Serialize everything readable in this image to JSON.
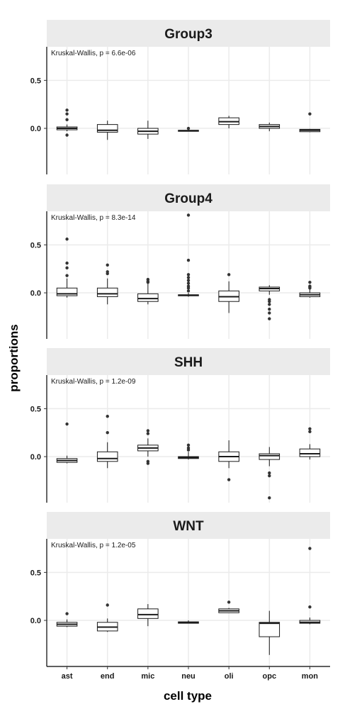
{
  "chart_data": {
    "type": "boxplot",
    "xlabel": "cell type",
    "ylabel": "proportions",
    "categories": [
      "ast",
      "end",
      "mic",
      "neu",
      "oli",
      "opc",
      "mon"
    ],
    "ylim": [
      -0.48,
      0.85
    ],
    "yticks": [
      0.0,
      0.5
    ],
    "ytick_labels": [
      "0.0",
      "0.5"
    ],
    "grid": true,
    "legend": "none",
    "colors": {
      "strip": "#ebebeb",
      "grid": "#ebebeb",
      "box_fill": "#ffffff",
      "ink": "#1a1a1a",
      "point": "#333333"
    },
    "panels": [
      {
        "title": "Group3",
        "annotation": "Kruskal-Wallis, p = 6.6e-06",
        "boxes": [
          {
            "cat": "ast",
            "lo": -0.03,
            "q1": -0.015,
            "med": 0.0,
            "q3": 0.015,
            "hi": 0.04,
            "out": [
              0.19,
              0.15,
              0.09,
              -0.07
            ]
          },
          {
            "cat": "end",
            "lo": -0.12,
            "q1": -0.04,
            "med": -0.02,
            "q3": 0.04,
            "hi": 0.08,
            "out": []
          },
          {
            "cat": "mic",
            "lo": -0.11,
            "q1": -0.06,
            "med": -0.03,
            "q3": 0.0,
            "hi": 0.08,
            "out": []
          },
          {
            "cat": "neu",
            "lo": -0.03,
            "q1": -0.03,
            "med": -0.025,
            "q3": -0.02,
            "hi": -0.01,
            "out": [
              0.0
            ]
          },
          {
            "cat": "oli",
            "lo": 0.0,
            "q1": 0.04,
            "med": 0.07,
            "q3": 0.11,
            "hi": 0.13,
            "out": []
          },
          {
            "cat": "opc",
            "lo": -0.03,
            "q1": 0.0,
            "med": 0.02,
            "q3": 0.04,
            "hi": 0.06,
            "out": []
          },
          {
            "cat": "mon",
            "lo": -0.04,
            "q1": -0.035,
            "med": -0.02,
            "q3": -0.01,
            "hi": -0.005,
            "out": [
              0.15
            ]
          }
        ]
      },
      {
        "title": "Group4",
        "annotation": "Kruskal-Wallis, p = 8.3e-14",
        "boxes": [
          {
            "cat": "ast",
            "lo": -0.05,
            "q1": -0.03,
            "med": -0.01,
            "q3": 0.05,
            "hi": 0.15,
            "out": [
              0.56,
              0.31,
              0.26,
              0.18
            ]
          },
          {
            "cat": "end",
            "lo": -0.12,
            "q1": -0.04,
            "med": -0.01,
            "q3": 0.05,
            "hi": 0.15,
            "out": [
              0.29,
              0.22,
              0.2
            ]
          },
          {
            "cat": "mic",
            "lo": -0.12,
            "q1": -0.09,
            "med": -0.06,
            "q3": -0.01,
            "hi": 0.1,
            "out": [
              0.14,
              0.12,
              0.11
            ]
          },
          {
            "cat": "neu",
            "lo": -0.04,
            "q1": -0.03,
            "med": -0.025,
            "q3": -0.02,
            "hi": 0.0,
            "out": [
              0.81,
              0.34,
              0.19,
              0.16,
              0.13,
              0.1,
              0.07,
              0.05,
              0.02
            ]
          },
          {
            "cat": "oli",
            "lo": -0.21,
            "q1": -0.09,
            "med": -0.04,
            "q3": 0.02,
            "hi": 0.12,
            "out": [
              0.19
            ]
          },
          {
            "cat": "opc",
            "lo": -0.02,
            "q1": 0.02,
            "med": 0.045,
            "q3": 0.06,
            "hi": 0.08,
            "out": [
              -0.07,
              -0.09,
              -0.12,
              -0.17,
              -0.21,
              -0.27
            ]
          },
          {
            "cat": "mon",
            "lo": -0.05,
            "q1": -0.04,
            "med": -0.02,
            "q3": 0.0,
            "hi": 0.04,
            "out": [
              0.11,
              0.07,
              0.06,
              0.05
            ]
          }
        ]
      },
      {
        "title": "SHH",
        "annotation": "Kruskal-Wallis, p = 1.2e-09",
        "boxes": [
          {
            "cat": "ast",
            "lo": -0.07,
            "q1": -0.06,
            "med": -0.04,
            "q3": -0.02,
            "hi": 0.01,
            "out": [
              0.34
            ]
          },
          {
            "cat": "end",
            "lo": -0.12,
            "q1": -0.05,
            "med": -0.02,
            "q3": 0.05,
            "hi": 0.15,
            "out": [
              0.42,
              0.25
            ]
          },
          {
            "cat": "mic",
            "lo": 0.0,
            "q1": 0.06,
            "med": 0.09,
            "q3": 0.12,
            "hi": 0.19,
            "out": [
              0.27,
              0.24,
              -0.05,
              -0.07
            ]
          },
          {
            "cat": "neu",
            "lo": -0.03,
            "q1": -0.02,
            "med": -0.01,
            "q3": 0.0,
            "hi": 0.05,
            "out": [
              0.12,
              0.09,
              0.07
            ]
          },
          {
            "cat": "oli",
            "lo": -0.12,
            "q1": -0.05,
            "med": 0.0,
            "q3": 0.05,
            "hi": 0.17,
            "out": [
              -0.24
            ]
          },
          {
            "cat": "opc",
            "lo": -0.1,
            "q1": -0.03,
            "med": 0.01,
            "q3": 0.03,
            "hi": 0.1,
            "out": [
              -0.17,
              -0.2,
              -0.43
            ]
          },
          {
            "cat": "mon",
            "lo": -0.03,
            "q1": 0.0,
            "med": 0.03,
            "q3": 0.08,
            "hi": 0.13,
            "out": [
              0.29,
              0.26
            ]
          }
        ]
      },
      {
        "title": "WNT",
        "annotation": "Kruskal-Wallis, p = 1.2e-05",
        "boxes": [
          {
            "cat": "ast",
            "lo": -0.07,
            "q1": -0.06,
            "med": -0.04,
            "q3": -0.02,
            "hi": 0.01,
            "out": [
              0.07
            ]
          },
          {
            "cat": "end",
            "lo": -0.12,
            "q1": -0.11,
            "med": -0.07,
            "q3": -0.02,
            "hi": 0.02,
            "out": [
              0.16
            ]
          },
          {
            "cat": "mic",
            "lo": -0.06,
            "q1": 0.02,
            "med": 0.06,
            "q3": 0.12,
            "hi": 0.17,
            "out": []
          },
          {
            "cat": "neu",
            "lo": -0.03,
            "q1": -0.03,
            "med": -0.025,
            "q3": -0.015,
            "hi": 0.0,
            "out": []
          },
          {
            "cat": "oli",
            "lo": 0.08,
            "q1": 0.08,
            "med": 0.1,
            "q3": 0.12,
            "hi": 0.13,
            "out": [
              0.19
            ]
          },
          {
            "cat": "opc",
            "lo": -0.36,
            "q1": -0.17,
            "med": -0.03,
            "q3": -0.02,
            "hi": 0.1,
            "out": []
          },
          {
            "cat": "mon",
            "lo": -0.04,
            "q1": -0.03,
            "med": -0.02,
            "q3": 0.0,
            "hi": 0.03,
            "out": [
              0.75,
              0.14
            ]
          }
        ]
      }
    ]
  }
}
